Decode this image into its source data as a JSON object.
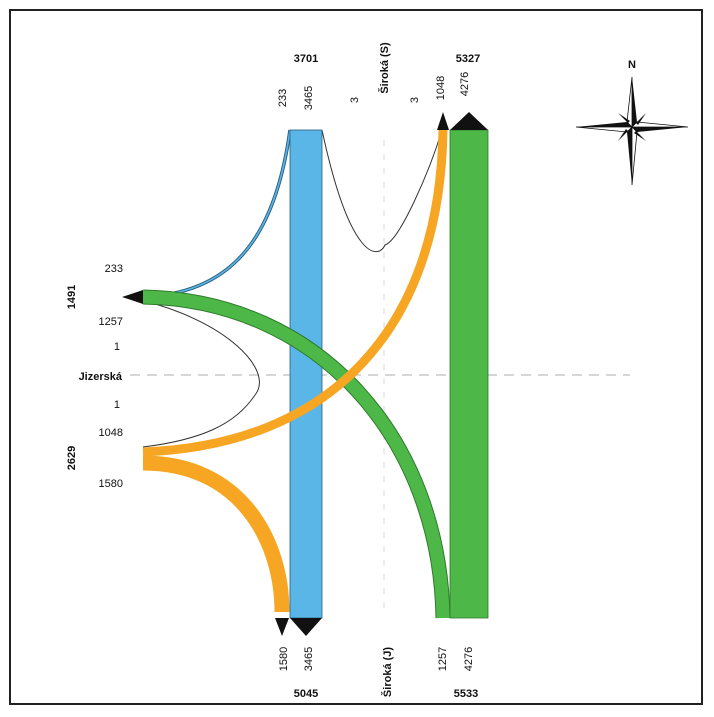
{
  "colors": {
    "blue": "#5ab6e6",
    "green": "#4db848",
    "orange": "#f6a623",
    "frame": "#222222",
    "axis": "#c8c8c8"
  },
  "compass": {
    "north": "N"
  },
  "streets": {
    "north": "Široká (S)",
    "south": "Široká (J)",
    "west": "Jizerská"
  },
  "totals": {
    "north_in": "3701",
    "north_out": "5327",
    "south_out": "5045",
    "south_in": "5533",
    "west_top": "1491",
    "west_bottom": "2629"
  },
  "north_labels": {
    "a": "233",
    "b": "3465",
    "c": "3",
    "d": "3",
    "e": "1048",
    "f": "4276"
  },
  "south_labels": {
    "a": "1580",
    "b": "3465",
    "c": "1257",
    "d": "4276"
  },
  "west_labels": {
    "a": "233",
    "b": "1257",
    "c": "1",
    "d": "1",
    "e": "1048",
    "f": "1580"
  },
  "flows": [
    {
      "from": "Široká (S)",
      "to": "Široká (J)",
      "value": 3465,
      "color": "blue"
    },
    {
      "from": "Široká (J)",
      "to": "Široká (S)",
      "value": 4276,
      "color": "green"
    },
    {
      "from": "Široká (J)",
      "to": "Jizerská",
      "value": 1257,
      "color": "green"
    },
    {
      "from": "Jizerská",
      "to": "Široká (S)",
      "value": 1048,
      "color": "orange"
    },
    {
      "from": "Jizerská",
      "to": "Široká (J)",
      "value": 1580,
      "color": "orange"
    },
    {
      "from": "Široká (S)",
      "to": "Jizerská",
      "value": 233,
      "color": "blue"
    },
    {
      "from": "Široká (S)",
      "to": "Široká (S)",
      "value": 3,
      "color": "white"
    },
    {
      "from": "Jizerská",
      "to": "Jizerská",
      "value": 1,
      "color": "white"
    }
  ]
}
